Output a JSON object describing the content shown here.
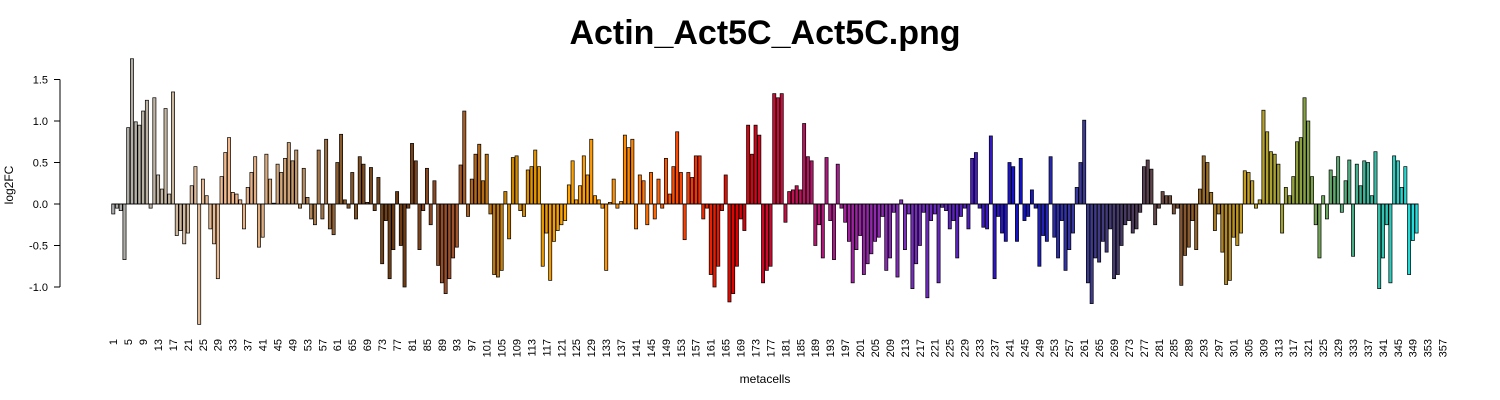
{
  "chart_data": {
    "type": "bar",
    "title": "Actin_Act5C_Act5C.png",
    "xlabel": "metacells",
    "ylabel": "log2FC",
    "ylim": [
      -1.45,
      1.75
    ],
    "yticks": [
      -1.0,
      -0.5,
      0.0,
      0.5,
      1.0,
      1.5
    ],
    "ytick_labels": [
      "-1.0",
      "-0.5",
      "0.0",
      "0.5",
      "1.0",
      "1.5"
    ],
    "xtick_labels": [
      "1",
      "5",
      "9",
      "13",
      "17",
      "21",
      "25",
      "29",
      "33",
      "37",
      "41",
      "45",
      "49",
      "53",
      "57",
      "61",
      "65",
      "69",
      "73",
      "77",
      "81",
      "85",
      "89",
      "93",
      "97",
      "101",
      "105",
      "109",
      "113",
      "117",
      "121",
      "125",
      "129",
      "133",
      "137",
      "141",
      "145",
      "149",
      "153",
      "157",
      "161",
      "165",
      "169",
      "173",
      "177",
      "181",
      "185",
      "189",
      "193",
      "197",
      "201",
      "205",
      "209",
      "213",
      "217",
      "221",
      "225",
      "229",
      "233",
      "237",
      "241",
      "245",
      "249",
      "253",
      "257",
      "261",
      "265",
      "269",
      "273",
      "277",
      "281",
      "285",
      "289",
      "293",
      "297",
      "301",
      "305",
      "309",
      "313",
      "317",
      "321",
      "325",
      "329",
      "333",
      "337",
      "341",
      "345",
      "349",
      "353",
      "357"
    ],
    "grid": false,
    "legend": "none",
    "colors": [
      "#a9a9a9",
      "#c8b8a0",
      "#f4b98c",
      "#d2a679",
      "#8b5a2b",
      "#6b3a12",
      "#a0522d",
      "#cd8500",
      "#ffa500",
      "#ff8c00",
      "#ff4500",
      "#dd0000",
      "#c0104e",
      "#a020a0",
      "#7b2fbe",
      "#5520c0",
      "#1010cc",
      "#3a3aa0",
      "#4a3a5a",
      "#8b5a2b",
      "#c8a020",
      "#88a040",
      "#40b090",
      "#20e0e0"
    ],
    "values": [
      -0.12,
      -0.05,
      -0.08,
      -0.67,
      0.92,
      1.75,
      0.99,
      0.95,
      1.12,
      1.25,
      -0.05,
      1.28,
      0.35,
      0.18,
      1.15,
      0.12,
      1.35,
      -0.38,
      -0.32,
      -0.48,
      -0.35,
      0.22,
      0.45,
      -1.45,
      0.3,
      0.1,
      -0.3,
      -0.48,
      -0.9,
      0.33,
      0.62,
      0.8,
      0.14,
      0.12,
      0.05,
      -0.3,
      0.2,
      0.38,
      0.57,
      -0.52,
      -0.4,
      0.6,
      0.3,
      0.01,
      0.48,
      0.38,
      0.55,
      0.74,
      0.52,
      0.65,
      -0.05,
      0.43,
      0.08,
      -0.18,
      -0.25,
      0.65,
      -0.18,
      0.78,
      -0.3,
      -0.37,
      0.5,
      0.84,
      0.05,
      -0.05,
      0.38,
      -0.18,
      0.57,
      0.48,
      0.02,
      0.44,
      -0.08,
      0.32,
      -0.72,
      -0.2,
      -0.9,
      -0.55,
      0.15,
      -0.5,
      -1.0,
      -0.05,
      0.73,
      0.52,
      -0.55,
      -0.08,
      0.43,
      -0.25,
      0.28,
      -0.74,
      -0.95,
      -1.08,
      -0.9,
      -0.65,
      -0.52,
      0.47,
      1.12,
      -0.15,
      0.3,
      0.6,
      0.72,
      0.28,
      0.6,
      -0.12,
      -0.85,
      -0.88,
      -0.8,
      0.15,
      -0.42,
      0.56,
      0.58,
      -0.08,
      -0.15,
      0.41,
      0.45,
      0.65,
      0.45,
      -0.75,
      -0.35,
      -0.92,
      -0.45,
      -0.32,
      -0.25,
      -0.2,
      0.23,
      0.52,
      0.05,
      0.22,
      0.58,
      0.35,
      0.78,
      0.1,
      0.05,
      -0.05,
      -0.8,
      0.02,
      0.3,
      -0.05,
      0.03,
      0.83,
      0.68,
      0.78,
      -0.3,
      0.35,
      0.28,
      -0.25,
      0.38,
      -0.18,
      0.3,
      -0.05,
      0.55,
      0.12,
      0.45,
      0.87,
      0.38,
      -0.43,
      0.38,
      0.32,
      0.58,
      0.58,
      -0.18,
      -0.05,
      -0.85,
      -1.0,
      -0.75,
      -0.08,
      0.35,
      -1.18,
      -1.08,
      -0.75,
      -0.18,
      -0.32,
      0.95,
      0.6,
      0.95,
      0.83,
      -0.95,
      -0.8,
      -0.75,
      1.33,
      1.28,
      1.33,
      -0.22,
      0.15,
      0.17,
      0.22,
      0.17,
      0.97,
      0.57,
      0.52,
      -0.5,
      -0.25,
      -0.65,
      0.56,
      -0.2,
      -0.67,
      0.48,
      -0.05,
      -0.22,
      -0.45,
      -0.95,
      -0.55,
      -0.38,
      -0.85,
      -0.72,
      -0.6,
      -0.45,
      -0.4,
      -0.15,
      -0.8,
      -0.65,
      -0.1,
      -0.88,
      0.05,
      -0.55,
      -0.12,
      -1.02,
      -0.72,
      -0.5,
      -0.1,
      -1.13,
      -0.2,
      -0.12,
      -0.95,
      -0.04,
      -0.08,
      -0.3,
      -0.2,
      -0.65,
      -0.15,
      -0.05,
      -0.3,
      0.55,
      0.62,
      -0.05,
      -0.28,
      -0.3,
      0.82,
      -0.9,
      -0.15,
      -0.35,
      -0.45,
      0.5,
      0.45,
      -0.45,
      0.55,
      -0.2,
      -0.15,
      0.17,
      -0.05,
      -0.75,
      -0.38,
      -0.45,
      0.57,
      -0.4,
      -0.65,
      -0.2,
      -0.8,
      -0.55,
      -0.35,
      0.2,
      0.5,
      1.01,
      -0.95,
      -1.2,
      -0.65,
      -0.7,
      -0.45,
      -0.58,
      -0.3,
      -0.9,
      -0.85,
      -0.5,
      -0.25,
      -0.2,
      -0.35,
      -0.3,
      -0.1,
      0.45,
      0.53,
      0.42,
      -0.25,
      -0.05,
      0.15,
      0.1,
      0.1,
      -0.12,
      -0.05,
      -0.98,
      -0.62,
      -0.52,
      -0.2,
      -0.55,
      0.18,
      0.58,
      0.5,
      0.14,
      -0.32,
      -0.12,
      -0.58,
      -0.97,
      -0.92,
      -0.4,
      -0.5,
      -0.35,
      0.4,
      0.38,
      0.28,
      -0.05,
      0.05,
      1.13,
      0.87,
      0.63,
      0.6,
      0.48,
      -0.35,
      0.2,
      0.1,
      0.33,
      0.75,
      0.8,
      1.28,
      1.0,
      0.33,
      -0.25,
      -0.65,
      0.1,
      -0.18,
      0.41,
      0.33,
      0.57,
      -0.1,
      0.28,
      0.53,
      -0.63,
      0.48,
      0.22,
      0.52,
      0.5,
      0.1,
      0.63,
      -1.02,
      -0.65,
      -0.25,
      -0.95,
      0.58,
      0.52,
      0.2,
      0.45,
      -0.85,
      -0.44,
      -0.35
    ]
  }
}
